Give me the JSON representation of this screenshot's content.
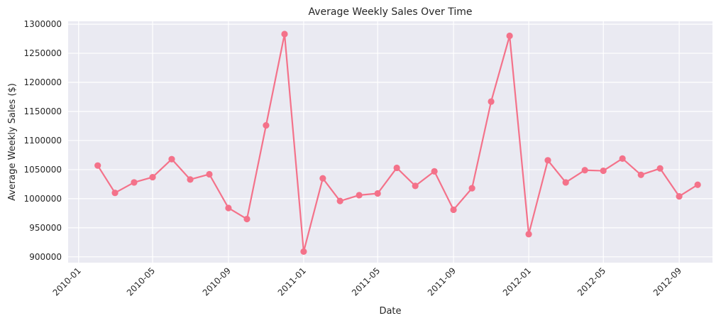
{
  "chart_data": {
    "type": "line",
    "title": "Average Weekly Sales Over Time",
    "xlabel": "Date",
    "ylabel": "Average Weekly Sales ($)",
    "grid": true,
    "x_ticks": [
      "2010-01",
      "2010-05",
      "2010-09",
      "2011-01",
      "2011-05",
      "2011-09",
      "2012-01",
      "2012-05",
      "2012-09"
    ],
    "y_ticks": [
      900000,
      950000,
      1000000,
      1050000,
      1100000,
      1150000,
      1200000,
      1250000,
      1300000
    ],
    "ylim": [
      890000,
      1305000
    ],
    "xlim": [
      "2009-12-15",
      "2012-10-25"
    ],
    "line_color": "#f4728a",
    "series": [
      {
        "x": [
          "2010-02-01",
          "2010-03-01",
          "2010-04-01",
          "2010-05-01",
          "2010-06-01",
          "2010-07-01",
          "2010-08-01",
          "2010-09-01",
          "2010-10-01",
          "2010-11-01",
          "2010-12-01",
          "2011-01-01",
          "2011-02-01",
          "2011-03-01",
          "2011-04-01",
          "2011-05-01",
          "2011-06-01",
          "2011-07-01",
          "2011-08-01",
          "2011-09-01",
          "2011-10-01",
          "2011-11-01",
          "2011-12-01",
          "2012-01-01",
          "2012-02-01",
          "2012-03-01",
          "2012-04-01",
          "2012-05-01",
          "2012-06-01",
          "2012-07-01",
          "2012-08-01",
          "2012-09-01",
          "2012-10-01"
        ],
        "values": [
          1057000,
          1010000,
          1028000,
          1037000,
          1068000,
          1033000,
          1042000,
          984000,
          965000,
          1126000,
          1283000,
          909000,
          1035000,
          996000,
          1006000,
          1009000,
          1053000,
          1022000,
          1047000,
          981000,
          1018000,
          1167000,
          1280000,
          939000,
          1066000,
          1028000,
          1049000,
          1048000,
          1069000,
          1041000,
          1052000,
          1004000,
          1024000
        ]
      }
    ]
  }
}
